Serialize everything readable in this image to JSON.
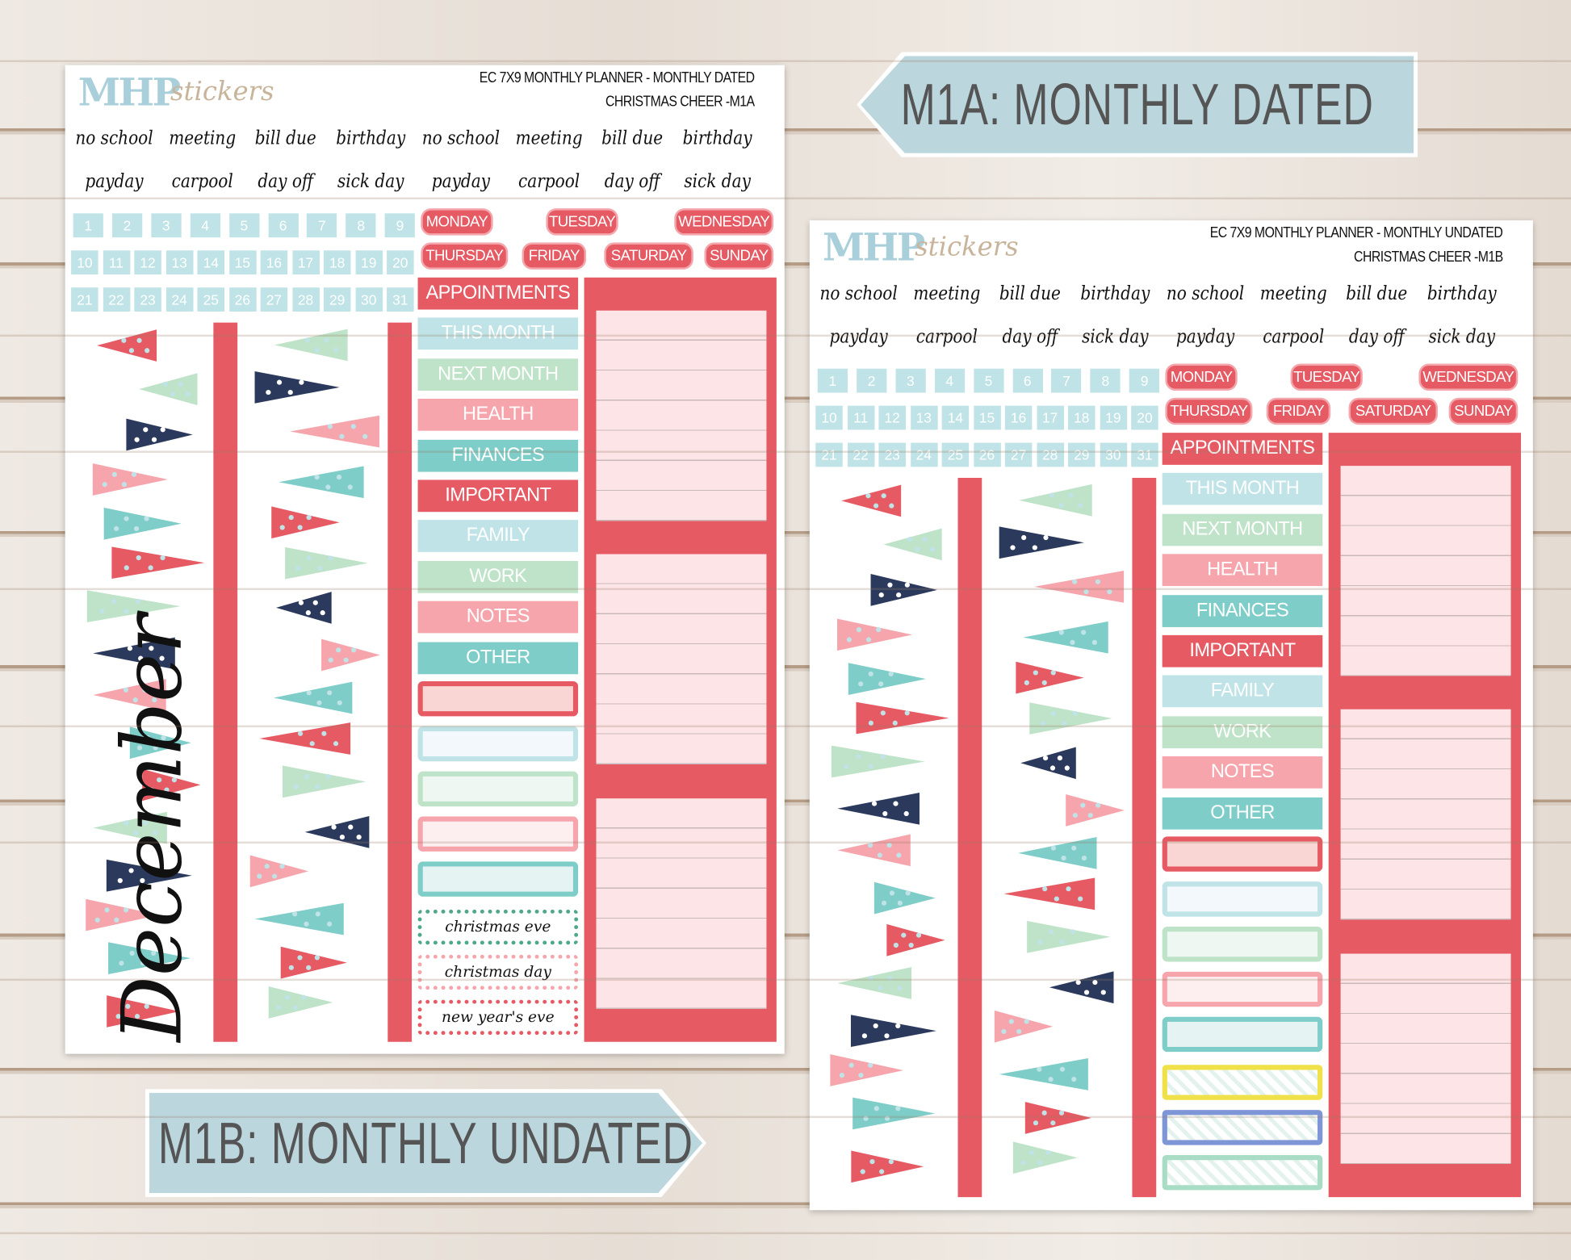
{
  "tags": {
    "m1a": "M1A: MONTHLY DATED",
    "m1b": "M1B: MONTHLY UNDATED"
  },
  "colors": {
    "red": "#e65a64",
    "light_teal": "#bfe3e6",
    "mint": "#bfe3c8",
    "pink": "#f6a5ac",
    "teal": "#7ecdc8",
    "light_pink": "#fde4e6",
    "navy": "#2b3a5c",
    "tag_blue": "#bcd6dd"
  },
  "sheets": [
    {
      "logo": {
        "mhp": "MHP",
        "stickers": "stickers"
      },
      "title_line1": "EC 7X9 MONTHLY PLANNER - MONTHLY DATED",
      "title_line2": "CHRISTMAS CHEER -M1A",
      "month_script": "December",
      "words_row1": [
        "no school",
        "meeting",
        "bill due",
        "birthday",
        "no school",
        "meeting",
        "bill due",
        "birthday"
      ],
      "words_row2": [
        "payday",
        "carpool",
        "day off",
        "sick day",
        "payday",
        "carpool",
        "day off",
        "sick day"
      ],
      "numbers": [
        "1",
        "2",
        "3",
        "4",
        "5",
        "6",
        "7",
        "8",
        "9",
        "10",
        "11",
        "12",
        "13",
        "14",
        "15",
        "16",
        "17",
        "18",
        "19",
        "20",
        "21",
        "22",
        "23",
        "24",
        "25",
        "26",
        "27",
        "28",
        "29",
        "30",
        "31"
      ],
      "days": [
        "MONDAY",
        "TUESDAY",
        "WEDNESDAY",
        "THURSDAY",
        "FRIDAY",
        "SATURDAY",
        "SUNDAY"
      ],
      "labels": [
        "APPOINTMENTS",
        "THIS MONTH",
        "NEXT MONTH",
        "HEALTH",
        "FINANCES",
        "IMPORTANT",
        "FAMILY",
        "WORK",
        "NOTES",
        "OTHER"
      ],
      "holidays": [
        "christmas eve",
        "christmas day",
        "new year's eve"
      ]
    },
    {
      "logo": {
        "mhp": "MHP",
        "stickers": "stickers"
      },
      "title_line1": "EC 7X9 MONTHLY PLANNER - MONTHLY UNDATED",
      "title_line2": "CHRISTMAS CHEER -M1B",
      "words_row1": [
        "no school",
        "meeting",
        "bill due",
        "birthday",
        "no school",
        "meeting",
        "bill due",
        "birthday"
      ],
      "words_row2": [
        "payday",
        "carpool",
        "day off",
        "sick day",
        "payday",
        "carpool",
        "day off",
        "sick day"
      ],
      "numbers": [
        "1",
        "2",
        "3",
        "4",
        "5",
        "6",
        "7",
        "8",
        "9",
        "10",
        "11",
        "12",
        "13",
        "14",
        "15",
        "16",
        "17",
        "18",
        "19",
        "20",
        "21",
        "22",
        "23",
        "24",
        "25",
        "26",
        "27",
        "28",
        "29",
        "30",
        "31"
      ],
      "days": [
        "MONDAY",
        "TUESDAY",
        "WEDNESDAY",
        "THURSDAY",
        "FRIDAY",
        "SATURDAY",
        "SUNDAY"
      ],
      "labels": [
        "APPOINTMENTS",
        "THIS MONTH",
        "NEXT MONTH",
        "HEALTH",
        "FINANCES",
        "IMPORTANT",
        "FAMILY",
        "WORK",
        "NOTES",
        "OTHER"
      ]
    }
  ]
}
